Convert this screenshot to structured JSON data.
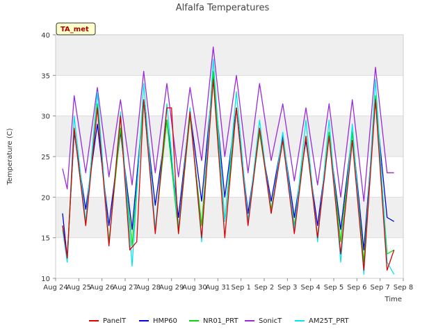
{
  "chart_data": {
    "type": "line",
    "title": "Alfalfa Temperatures",
    "xlabel": "Time",
    "ylabel": "Temperature (C)",
    "ylim": [
      10,
      40
    ],
    "yticks": [
      10,
      15,
      20,
      25,
      30,
      35,
      40
    ],
    "x_day_range": [
      0,
      15
    ],
    "xticks": [
      "Aug 24",
      "Aug 25",
      "Aug 26",
      "Aug 27",
      "Aug 28",
      "Aug 29",
      "Aug 30",
      "Aug 31",
      "Sep 1",
      "Sep 2",
      "Sep 3",
      "Sep 4",
      "Sep 5",
      "Sep 6",
      "Sep 7",
      "Sep 8"
    ],
    "badge": "TA_met",
    "grid": "horizontal bands",
    "legend_position": "bottom",
    "series": [
      {
        "name": "PanelT",
        "color": "#dd0000",
        "x": [
          0.3,
          0.5,
          0.8,
          1.3,
          1.8,
          2.3,
          2.8,
          3.2,
          3.5,
          3.8,
          4.3,
          4.8,
          5.0,
          5.3,
          5.8,
          6.3,
          6.8,
          7.3,
          7.8,
          8.3,
          8.8,
          9.3,
          9.8,
          10.3,
          10.8,
          11.3,
          11.8,
          12.3,
          12.8,
          13.3,
          13.8,
          14.3,
          14.6
        ],
        "y": [
          16.5,
          12.5,
          28.5,
          16.5,
          31.0,
          14.0,
          30.0,
          13.5,
          14.5,
          32.0,
          15.5,
          31.0,
          31.0,
          15.5,
          30.5,
          15.0,
          34.5,
          15.0,
          31.0,
          16.5,
          28.5,
          18.0,
          27.0,
          15.5,
          27.5,
          15.0,
          27.5,
          13.0,
          27.0,
          11.0,
          32.0,
          11.0,
          13.5
        ]
      },
      {
        "name": "HMP60",
        "color": "#0000dd",
        "x": [
          0.3,
          0.5,
          0.8,
          1.3,
          1.8,
          2.3,
          2.8,
          3.3,
          3.8,
          4.3,
          4.8,
          5.3,
          5.8,
          6.3,
          6.8,
          7.3,
          7.8,
          8.3,
          8.8,
          9.3,
          9.8,
          10.3,
          10.8,
          11.3,
          11.8,
          12.3,
          12.8,
          13.3,
          13.8,
          14.3,
          14.6
        ],
        "y": [
          18.0,
          12.5,
          28.0,
          18.5,
          29.0,
          16.5,
          28.0,
          16.0,
          32.0,
          19.0,
          29.5,
          17.5,
          30.5,
          19.5,
          35.0,
          20.0,
          31.0,
          18.0,
          28.0,
          19.5,
          27.5,
          17.5,
          27.0,
          16.5,
          27.5,
          16.0,
          28.0,
          13.5,
          32.0,
          17.5,
          17.0
        ]
      },
      {
        "name": "NR01_PRT",
        "color": "#00dd00",
        "x": [
          0.3,
          0.5,
          0.8,
          1.3,
          1.8,
          2.3,
          2.8,
          3.3,
          3.8,
          4.3,
          4.8,
          5.3,
          5.8,
          6.3,
          6.8,
          7.3,
          7.8,
          8.3,
          8.8,
          9.3,
          9.8,
          10.3,
          10.8,
          11.3,
          11.8,
          12.3,
          12.8,
          13.3,
          13.8,
          14.3,
          14.6
        ],
        "y": [
          16.5,
          12.0,
          28.5,
          16.5,
          31.5,
          14.5,
          28.5,
          14.0,
          32.0,
          16.0,
          29.5,
          15.5,
          30.0,
          16.5,
          35.5,
          17.0,
          31.0,
          17.0,
          28.0,
          18.5,
          27.0,
          16.5,
          27.5,
          15.0,
          28.0,
          14.5,
          28.0,
          12.0,
          32.5,
          13.0,
          13.5
        ]
      },
      {
        "name": "SonicT",
        "color": "#9a28dd",
        "x": [
          0.3,
          0.5,
          0.8,
          1.3,
          1.8,
          2.3,
          2.8,
          3.3,
          3.8,
          4.3,
          4.8,
          5.3,
          5.8,
          6.3,
          6.8,
          7.3,
          7.8,
          8.3,
          8.8,
          9.3,
          9.8,
          10.3,
          10.8,
          11.3,
          11.8,
          12.3,
          12.8,
          13.3,
          13.8,
          14.3,
          14.6
        ],
        "y": [
          23.5,
          21.0,
          32.5,
          23.0,
          33.5,
          22.5,
          32.0,
          21.5,
          35.5,
          23.0,
          34.0,
          22.5,
          33.5,
          24.5,
          38.5,
          25.0,
          35.0,
          23.0,
          34.0,
          24.5,
          31.5,
          22.0,
          31.0,
          21.5,
          31.5,
          20.0,
          32.0,
          19.5,
          36.0,
          23.0,
          23.0
        ]
      },
      {
        "name": "AM25T_PRT",
        "color": "#00e5ee",
        "x": [
          0.3,
          0.5,
          0.8,
          1.3,
          1.8,
          2.3,
          2.8,
          3.3,
          3.8,
          4.3,
          4.8,
          5.3,
          5.8,
          6.3,
          6.8,
          7.3,
          7.8,
          8.3,
          8.8,
          9.3,
          9.8,
          10.3,
          10.8,
          11.3,
          11.8,
          12.3,
          12.8,
          13.3,
          13.8,
          14.3,
          14.6
        ],
        "y": [
          16.0,
          12.0,
          30.0,
          17.0,
          33.0,
          14.0,
          30.5,
          11.5,
          34.0,
          16.0,
          31.5,
          16.0,
          31.0,
          14.5,
          37.0,
          17.0,
          33.0,
          17.0,
          29.5,
          18.0,
          28.0,
          16.0,
          29.5,
          14.5,
          29.5,
          12.0,
          29.0,
          10.5,
          34.5,
          12.0,
          10.5
        ]
      }
    ]
  }
}
